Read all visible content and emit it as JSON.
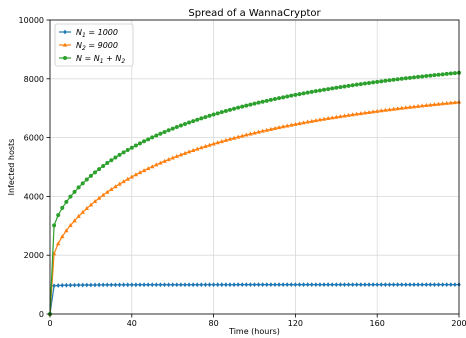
{
  "chart_data": {
    "type": "line",
    "title": "Spread of a WannaCryptor",
    "xlabel": "Time (hours)",
    "ylabel": "Infected hosts",
    "xlim": [
      0,
      200
    ],
    "ylim": [
      0,
      10000
    ],
    "xticks": [
      0,
      40,
      80,
      120,
      160,
      200
    ],
    "yticks": [
      0,
      2000,
      4000,
      6000,
      8000,
      10000
    ],
    "grid": true,
    "legend_position": "top-left",
    "x": [
      0,
      2,
      4,
      6,
      8,
      10,
      12,
      14,
      16,
      18,
      20,
      22,
      24,
      26,
      28,
      30,
      32,
      34,
      36,
      38,
      40,
      42,
      44,
      46,
      48,
      50,
      52,
      54,
      56,
      58,
      60,
      62,
      64,
      66,
      68,
      70,
      72,
      74,
      76,
      78,
      80,
      82,
      84,
      86,
      88,
      90,
      92,
      94,
      96,
      98,
      100,
      102,
      104,
      106,
      108,
      110,
      112,
      114,
      116,
      118,
      120,
      122,
      124,
      126,
      128,
      130,
      132,
      134,
      136,
      138,
      140,
      142,
      144,
      146,
      148,
      150,
      152,
      154,
      156,
      158,
      160,
      162,
      164,
      166,
      168,
      170,
      172,
      174,
      176,
      178,
      180,
      182,
      184,
      186,
      188,
      190,
      192,
      194,
      196,
      198,
      200
    ],
    "series": [
      {
        "name_parts": [
          "N",
          "1",
          " = 1000"
        ],
        "color": "#1f77b4",
        "marker": "diamond",
        "values": [
          0,
          960,
          970,
          975,
          978,
          980,
          982,
          984,
          985,
          986,
          987,
          988,
          989,
          990,
          990,
          991,
          991,
          992,
          992,
          993,
          993,
          993,
          994,
          994,
          994,
          994,
          995,
          995,
          995,
          995,
          995,
          996,
          996,
          996,
          996,
          996,
          996,
          997,
          997,
          997,
          997,
          997,
          997,
          997,
          997,
          997,
          998,
          998,
          998,
          998,
          998,
          998,
          998,
          998,
          998,
          998,
          998,
          998,
          998,
          999,
          999,
          999,
          999,
          999,
          999,
          999,
          999,
          999,
          999,
          999,
          999,
          999,
          999,
          999,
          999,
          999,
          999,
          999,
          999,
          999,
          999,
          999,
          999,
          999,
          999,
          999,
          999,
          999,
          999,
          999,
          999,
          999,
          999,
          999,
          999,
          999,
          999,
          999,
          999,
          999,
          999
        ]
      },
      {
        "name_parts": [
          "N",
          "2",
          " = 9000"
        ],
        "color": "#ff7f0e",
        "marker": "triangle",
        "values": [
          0,
          2054,
          2393,
          2634,
          2834,
          3012,
          3173,
          3322,
          3460,
          3590,
          3713,
          3829,
          3939,
          4044,
          4144,
          4240,
          4331,
          4419,
          4504,
          4585,
          4663,
          4738,
          4810,
          4880,
          4947,
          5013,
          5076,
          5137,
          5196,
          5253,
          5309,
          5363,
          5415,
          5466,
          5516,
          5564,
          5611,
          5657,
          5701,
          5745,
          5787,
          5828,
          5868,
          5907,
          5946,
          5983,
          6020,
          6055,
          6090,
          6124,
          6157,
          6190,
          6222,
          6253,
          6284,
          6314,
          6343,
          6372,
          6400,
          6427,
          6454,
          6480,
          6506,
          6532,
          6557,
          6581,
          6605,
          6628,
          6651,
          6674,
          6696,
          6718,
          6739,
          6760,
          6781,
          6801,
          6821,
          6840,
          6859,
          6878,
          6897,
          6915,
          6933,
          6950,
          6968,
          6985,
          7001,
          7018,
          7034,
          7050,
          7065,
          7081,
          7096,
          7110,
          7125,
          7139,
          7153,
          7167,
          7181,
          7194,
          7208
        ]
      },
      {
        "name_parts": [
          "N = N",
          "1",
          " + N",
          "2"
        ],
        "color": "#2ca02c",
        "marker": "circle",
        "values": [
          0,
          3014,
          3363,
          3609,
          3812,
          3992,
          4155,
          4306,
          4445,
          4576,
          4700,
          4817,
          4928,
          5034,
          5134,
          5231,
          5322,
          5411,
          5496,
          5578,
          5656,
          5731,
          5804,
          5874,
          5941,
          6007,
          6071,
          6132,
          6191,
          6248,
          6304,
          6359,
          6411,
          6462,
          6512,
          6560,
          6607,
          6654,
          6698,
          6742,
          6784,
          6825,
          6865,
          6904,
          6943,
          6980,
          7018,
          7053,
          7088,
          7122,
          7155,
          7188,
          7220,
          7251,
          7282,
          7312,
          7341,
          7370,
          7398,
          7426,
          7453,
          7479,
          7505,
          7531,
          7556,
          7580,
          7604,
          7627,
          7650,
          7673,
          7695,
          7717,
          7738,
          7759,
          7780,
          7800,
          7820,
          7839,
          7858,
          7877,
          7896,
          7914,
          7932,
          7949,
          7967,
          7984,
          8000,
          8017,
          8033,
          8049,
          8064,
          8080,
          8095,
          8109,
          8124,
          8138,
          8152,
          8166,
          8180,
          8193,
          8207
        ]
      }
    ]
  }
}
